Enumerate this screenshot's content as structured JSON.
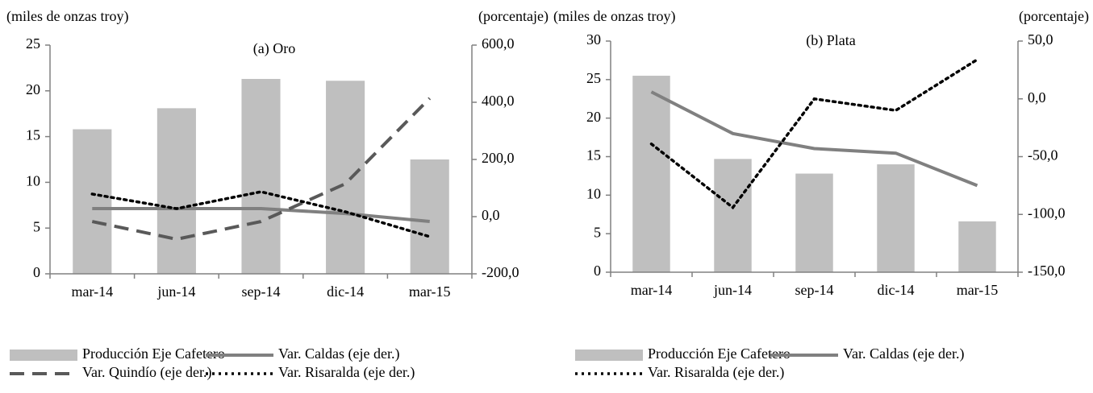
{
  "chart_data": [
    {
      "type": "bar",
      "title": "(a) Oro",
      "y_label": "(miles de onzas troy)",
      "y2_label": "(porcentaje)",
      "categories": [
        "mar-14",
        "jun-14",
        "sep-14",
        "dic-14",
        "mar-15"
      ],
      "ylim": [
        0,
        25
      ],
      "yticks": [
        0,
        5,
        10,
        15,
        20,
        25
      ],
      "y2lim": [
        -200,
        600
      ],
      "y2ticks": [
        {
          "value": -200,
          "label": "-200,0"
        },
        {
          "value": 0,
          "label": "0,0"
        },
        {
          "value": 200,
          "label": "200,0"
        },
        {
          "value": 400,
          "label": "400,0"
        },
        {
          "value": 600,
          "label": "600,0"
        }
      ],
      "series": [
        {
          "name": "Producción Eje Cafetero",
          "type": "bar",
          "color": "#bfbfbf",
          "values": [
            15.8,
            18.1,
            21.3,
            21.1,
            12.5
          ]
        },
        {
          "name": "Var. Caldas (eje der.)",
          "type": "line",
          "style": "solid",
          "color": "#808080",
          "axis": "y2",
          "values": [
            28,
            28,
            28,
            11,
            -17
          ]
        },
        {
          "name": "Var. Quindío (eje der.)",
          "type": "line",
          "style": "dashed",
          "color": "#595959",
          "axis": "y2",
          "values": [
            -17,
            -79,
            -17,
            115,
            414
          ]
        },
        {
          "name": "Var. Risaralda (eje der.)",
          "type": "line",
          "style": "dotted",
          "color": "#000000",
          "axis": "y2",
          "values": [
            79,
            28,
            87,
            17,
            -70
          ]
        }
      ]
    },
    {
      "type": "bar",
      "title": "(b) Plata",
      "y_label": "(miles de onzas troy)",
      "y2_label": "(porcentaje)",
      "categories": [
        "mar-14",
        "jun-14",
        "sep-14",
        "dic-14",
        "mar-15"
      ],
      "ylim": [
        0,
        30
      ],
      "yticks": [
        0,
        5,
        10,
        15,
        20,
        25,
        30
      ],
      "y2lim": [
        -150,
        50
      ],
      "y2ticks": [
        {
          "value": -150,
          "label": "-150,0"
        },
        {
          "value": -100,
          "label": "-100,0"
        },
        {
          "value": -50,
          "label": "-50,0"
        },
        {
          "value": 0,
          "label": "0,0"
        },
        {
          "value": 50,
          "label": "50,0"
        }
      ],
      "series": [
        {
          "name": "Producción Eje Cafetero",
          "type": "bar",
          "color": "#bfbfbf",
          "values": [
            25.5,
            14.7,
            12.8,
            14.0,
            6.6
          ]
        },
        {
          "name": "Var. Caldas (eje der.)",
          "type": "line",
          "style": "solid",
          "color": "#808080",
          "axis": "y2",
          "values": [
            6,
            -30,
            -43,
            -47,
            -75
          ]
        },
        {
          "name": "Var. Risaralda (eje der.)",
          "type": "line",
          "style": "dotted",
          "color": "#000000",
          "axis": "y2",
          "values": [
            -39,
            -94,
            0,
            -10,
            34
          ]
        }
      ]
    }
  ]
}
